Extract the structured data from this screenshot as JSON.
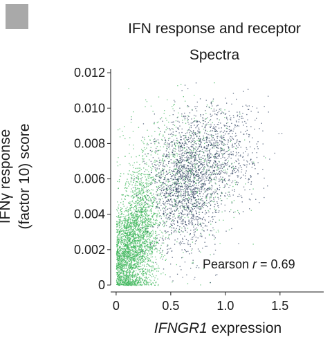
{
  "panel_tag_color": "#a9a9a9",
  "chart_data": {
    "type": "scatter",
    "title_line1": "IFN response and receptor",
    "title_line2": "Spectra",
    "ylabel_line1": "IFNγ response",
    "ylabel_line2": "(factor 10) score",
    "xlabel_gene": "IFNGR1",
    "xlabel_rest": " expression",
    "xlim": [
      -0.05,
      1.9
    ],
    "ylim": [
      0,
      0.0122
    ],
    "xticks": [
      0,
      0.5,
      1.0,
      1.5
    ],
    "xtick_labels": [
      "0",
      "0.5",
      "1.0",
      "1.5"
    ],
    "yticks": [
      0,
      0.002,
      0.004,
      0.006,
      0.008,
      0.01,
      0.012
    ],
    "ytick_labels": [
      "0",
      "0.002",
      "0.004",
      "0.006",
      "0.008",
      "0.010",
      "0.012"
    ],
    "annotation_label": "Pearson ",
    "annotation_r": "r",
    "annotation_value": " = 0.69",
    "grid": false,
    "series": [
      {
        "color": "#3cb55a",
        "clusters": [
          {
            "x_mean": 0.08,
            "x_sd": 0.07,
            "y_mean": 0.0016,
            "y_sd": 0.0013,
            "n": 1300
          },
          {
            "x_mean": 0.22,
            "x_sd": 0.09,
            "y_mean": 0.003,
            "y_sd": 0.0018,
            "n": 1700
          },
          {
            "x_mean": 0.6,
            "x_sd": 0.25,
            "y_mean": 0.0065,
            "y_sd": 0.002,
            "n": 700
          }
        ]
      },
      {
        "color": "#2d3f5e",
        "clusters": [
          {
            "x_mean": 0.62,
            "x_sd": 0.15,
            "y_mean": 0.0055,
            "y_sd": 0.0018,
            "n": 1500
          },
          {
            "x_mean": 0.92,
            "x_sd": 0.2,
            "y_mean": 0.0075,
            "y_sd": 0.0015,
            "n": 900
          }
        ]
      }
    ]
  }
}
